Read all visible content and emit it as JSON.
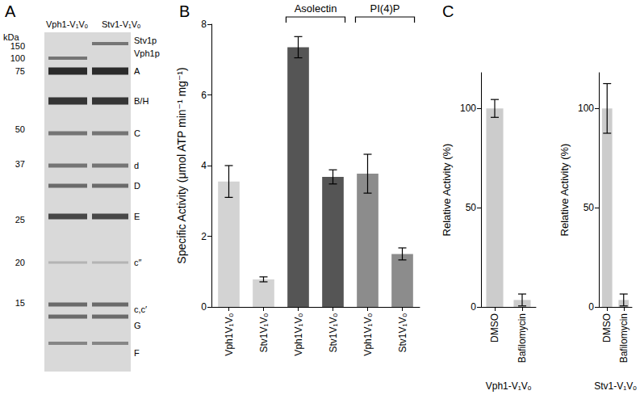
{
  "gel": {
    "panel": "A",
    "lanes": [
      "Vph1-V₁Vₒ",
      "Stv1-V₁Vₒ"
    ],
    "unit": "kDa",
    "markers": [
      150,
      100,
      75,
      50,
      37,
      25,
      20,
      15
    ],
    "bands": [
      "Stv1p",
      "Vph1p",
      "A",
      "B/H",
      "C",
      "d",
      "D",
      "E",
      "c″",
      "c,c′",
      "G",
      "F"
    ]
  },
  "chart_data": [
    {
      "panel": "B",
      "type": "bar",
      "y_label": "Specific Activity (μmol ATP min⁻¹ mg⁻¹)",
      "categories": [
        "Vph1V₁Vₒ",
        "Stv1V₁Vₒ",
        "Vph1V₁Vₒ",
        "Stv1V₁Vₒ",
        "Vph1V₁Vₒ",
        "Stv1V₁Vₒ"
      ],
      "values": [
        3.55,
        0.78,
        7.35,
        3.68,
        3.77,
        1.5
      ],
      "errors": [
        0.45,
        0.07,
        0.3,
        0.2,
        0.55,
        0.17
      ],
      "colors": [
        "#d3d3d3",
        "#d3d3d3",
        "#555555",
        "#555555",
        "#8c8c8c",
        "#8c8c8c"
      ],
      "ylim": [
        0,
        8
      ],
      "yticks": [
        0,
        2,
        4,
        6,
        8
      ],
      "grid": false,
      "annotations": [
        {
          "text": "Asolectin",
          "span": [
            2,
            3
          ]
        },
        {
          "text": "PI(4)P",
          "span": [
            4,
            5
          ]
        }
      ]
    },
    {
      "panel": "C",
      "type": "bar",
      "x_label": "Vph1-V₁Vₒ",
      "y_label": "Relative Activity (%)",
      "categories": [
        "DMSO",
        "Bafilomycin"
      ],
      "values": [
        100,
        3.5
      ],
      "errors": [
        4.5,
        3
      ],
      "color": "#cccccc",
      "ylim": [
        0,
        118
      ],
      "yticks": [
        0,
        50,
        100
      ],
      "grid": false
    },
    {
      "type": "bar",
      "x_label": "Stv1-V₁Vₒ",
      "y_label": "Relative Activity (%)",
      "categories": [
        "DMSO",
        "Bafilomycin"
      ],
      "values": [
        100,
        3.5
      ],
      "errors": [
        12.5,
        3
      ],
      "color": "#cccccc",
      "ylim": [
        0,
        118
      ],
      "yticks": [
        0,
        50,
        100
      ],
      "grid": false
    }
  ]
}
